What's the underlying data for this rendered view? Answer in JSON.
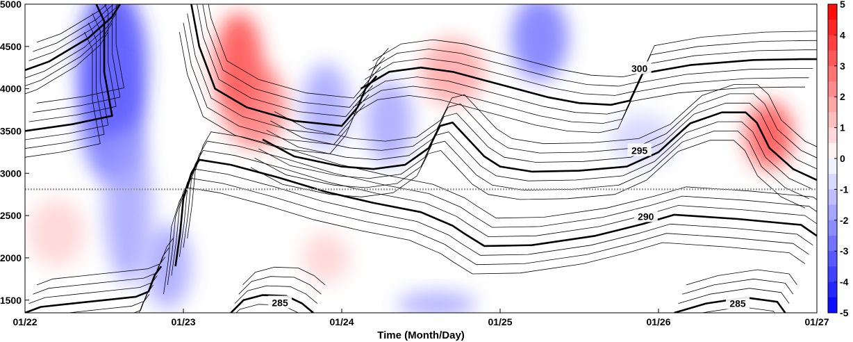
{
  "chart_data": {
    "type": "heatmap",
    "xlabel": "Time (Month/Day)",
    "ylabel": "",
    "x_ticks": [
      "01/22",
      "01/23",
      "01/24",
      "01/25",
      "01/26",
      "01/27"
    ],
    "y_ticks": [
      1500,
      2000,
      2500,
      3000,
      3500,
      4000,
      4500,
      5000
    ],
    "ylim": [
      1350,
      5000
    ],
    "colorbar": {
      "ticks": [
        5,
        4,
        3,
        2,
        1,
        0,
        -1,
        -2,
        -3,
        -4,
        -5
      ],
      "range": [
        -5,
        5
      ],
      "high_color": "#ff0000",
      "mid_color": "#ffffff",
      "low_color": "#0000ff"
    },
    "reference_line_height": 2810,
    "contour_labels": [
      {
        "text": "300",
        "day": 3.88,
        "height": 4240
      },
      {
        "text": "295",
        "day": 3.88,
        "height": 3270
      },
      {
        "text": "290",
        "day": 3.92,
        "height": 2490
      },
      {
        "text": "285",
        "day": 1.61,
        "height": 1470
      },
      {
        "text": "285",
        "day": 4.5,
        "height": 1460
      }
    ],
    "bold_contours": [
      {
        "name": "300",
        "points": [
          [
            0,
            4220
          ],
          [
            0.15,
            4320
          ],
          [
            0.4,
            4600
          ],
          [
            0.55,
            4850
          ],
          [
            0.6,
            5000
          ]
        ]
      },
      {
        "name": "300",
        "points": [
          [
            2.12,
            4000
          ],
          [
            2.3,
            4200
          ],
          [
            2.5,
            4250
          ],
          [
            2.7,
            4200
          ],
          [
            2.9,
            4100
          ],
          [
            3.1,
            4000
          ],
          [
            3.3,
            3900
          ],
          [
            3.5,
            3830
          ],
          [
            3.7,
            3810
          ],
          [
            3.82,
            3860
          ],
          [
            3.9,
            4180
          ],
          [
            4.2,
            4280
          ],
          [
            4.6,
            4340
          ],
          [
            4.9,
            4350
          ],
          [
            5,
            4350
          ]
        ]
      },
      {
        "name": "295",
        "points": [
          [
            0,
            3500
          ],
          [
            0.3,
            3580
          ],
          [
            0.55,
            3680
          ],
          [
            0.5,
            4200
          ],
          [
            0.5,
            4800
          ],
          [
            0.45,
            5000
          ]
        ]
      },
      {
        "name": "295",
        "points": [
          [
            1.05,
            5000
          ],
          [
            1.1,
            4500
          ],
          [
            1.2,
            4000
          ],
          [
            1.4,
            3780
          ],
          [
            1.7,
            3620
          ],
          [
            1.9,
            3580
          ],
          [
            2.0,
            3560
          ],
          [
            2.1,
            3780
          ],
          [
            2.15,
            4000
          ],
          [
            2.22,
            4150
          ]
        ]
      },
      {
        "name": "295",
        "points": [
          [
            1.5,
            3400
          ],
          [
            1.7,
            3200
          ],
          [
            2.0,
            3080
          ],
          [
            2.2,
            3050
          ],
          [
            2.4,
            3100
          ],
          [
            2.55,
            3300
          ],
          [
            2.62,
            3560
          ],
          [
            2.7,
            3600
          ],
          [
            2.8,
            3400
          ],
          [
            2.9,
            3200
          ],
          [
            3.0,
            3080
          ],
          [
            3.2,
            3020
          ],
          [
            3.5,
            3030
          ],
          [
            3.8,
            3080
          ],
          [
            4.0,
            3250
          ],
          [
            4.2,
            3590
          ],
          [
            4.4,
            3720
          ],
          [
            4.55,
            3720
          ],
          [
            4.62,
            3600
          ],
          [
            4.7,
            3300
          ],
          [
            4.85,
            3050
          ],
          [
            5,
            2920
          ]
        ]
      },
      {
        "name": "290",
        "points": [
          [
            0.95,
            1900
          ],
          [
            0.98,
            2300
          ],
          [
            1.0,
            2700
          ],
          [
            1.05,
            3000
          ],
          [
            1.1,
            3160
          ],
          [
            1.3,
            3100
          ],
          [
            1.6,
            2950
          ],
          [
            1.9,
            2780
          ],
          [
            2.2,
            2650
          ],
          [
            2.5,
            2540
          ],
          [
            2.7,
            2380
          ],
          [
            2.78,
            2280
          ],
          [
            2.9,
            2140
          ],
          [
            3.2,
            2150
          ],
          [
            3.6,
            2260
          ],
          [
            3.9,
            2400
          ],
          [
            4.1,
            2510
          ],
          [
            4.5,
            2460
          ],
          [
            4.9,
            2390
          ],
          [
            5,
            2260
          ]
        ]
      },
      {
        "name": "290",
        "points": [
          [
            0,
            1350
          ],
          [
            0.1,
            1420
          ],
          [
            0.3,
            1460
          ],
          [
            0.5,
            1500
          ],
          [
            0.7,
            1540
          ],
          [
            0.78,
            1600
          ],
          [
            0.82,
            1800
          ],
          [
            0.86,
            1900
          ]
        ]
      },
      {
        "name": "285",
        "points": [
          [
            1.3,
            1350
          ],
          [
            1.38,
            1500
          ],
          [
            1.5,
            1560
          ],
          [
            1.65,
            1550
          ],
          [
            1.75,
            1460
          ],
          [
            1.82,
            1350
          ]
        ]
      },
      {
        "name": "285",
        "points": [
          [
            4.1,
            1350
          ],
          [
            4.3,
            1460
          ],
          [
            4.55,
            1530
          ],
          [
            4.75,
            1480
          ],
          [
            4.8,
            1350
          ]
        ]
      }
    ],
    "anomaly_patches": [
      {
        "day": 0.55,
        "height": 4300,
        "dx": 0.22,
        "dy": 900,
        "value": -4
      },
      {
        "day": 0.55,
        "height": 3600,
        "dx": 0.2,
        "dy": 700,
        "value": -3
      },
      {
        "day": 0.65,
        "height": 2600,
        "dx": 0.15,
        "dy": 900,
        "value": -2
      },
      {
        "day": 1.35,
        "height": 4300,
        "dx": 0.15,
        "dy": 600,
        "value": 4
      },
      {
        "day": 1.45,
        "height": 3800,
        "dx": 0.2,
        "dy": 500,
        "value": 3
      },
      {
        "day": 1.9,
        "height": 3800,
        "dx": 0.15,
        "dy": 500,
        "value": -2
      },
      {
        "day": 2.3,
        "height": 3600,
        "dx": 0.15,
        "dy": 500,
        "value": -2
      },
      {
        "day": 2.7,
        "height": 4200,
        "dx": 0.2,
        "dy": 400,
        "value": 2
      },
      {
        "day": 3.25,
        "height": 4600,
        "dx": 0.18,
        "dy": 500,
        "value": -3
      },
      {
        "day": 3.9,
        "height": 3400,
        "dx": 0.2,
        "dy": 300,
        "value": -1
      },
      {
        "day": 4.7,
        "height": 3450,
        "dx": 0.15,
        "dy": 400,
        "value": 4
      },
      {
        "day": 0.9,
        "height": 1900,
        "dx": 0.15,
        "dy": 500,
        "value": -2
      },
      {
        "day": 2.6,
        "height": 1450,
        "dx": 0.25,
        "dy": 150,
        "value": -2
      },
      {
        "day": 0.2,
        "height": 2300,
        "dx": 0.18,
        "dy": 400,
        "value": 1
      },
      {
        "day": 1.9,
        "height": 2000,
        "dx": 0.15,
        "dy": 300,
        "value": 1
      }
    ]
  }
}
